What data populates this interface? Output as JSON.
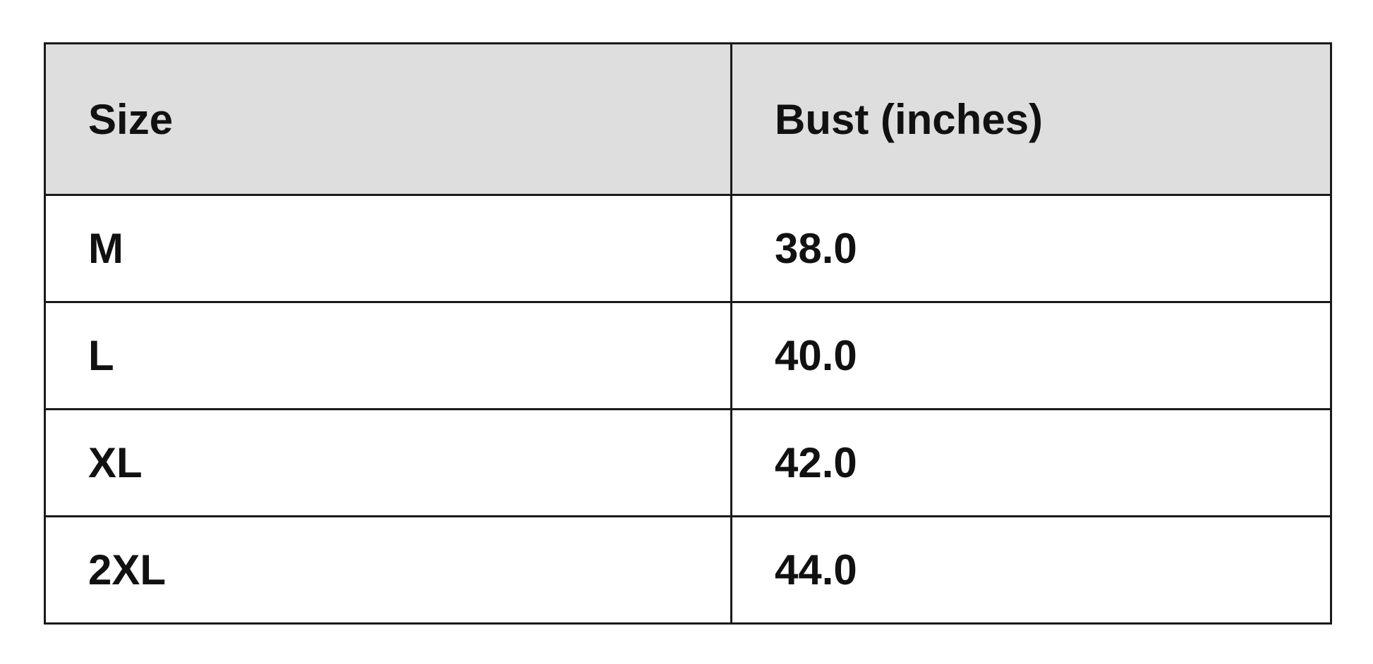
{
  "table": {
    "headers": [
      "Size",
      "Bust (inches)"
    ],
    "rows": [
      [
        "M",
        "38.0"
      ],
      [
        "L",
        "40.0"
      ],
      [
        "XL",
        "42.0"
      ],
      [
        "2XL",
        "44.0"
      ]
    ],
    "header_background": "#dedede"
  }
}
